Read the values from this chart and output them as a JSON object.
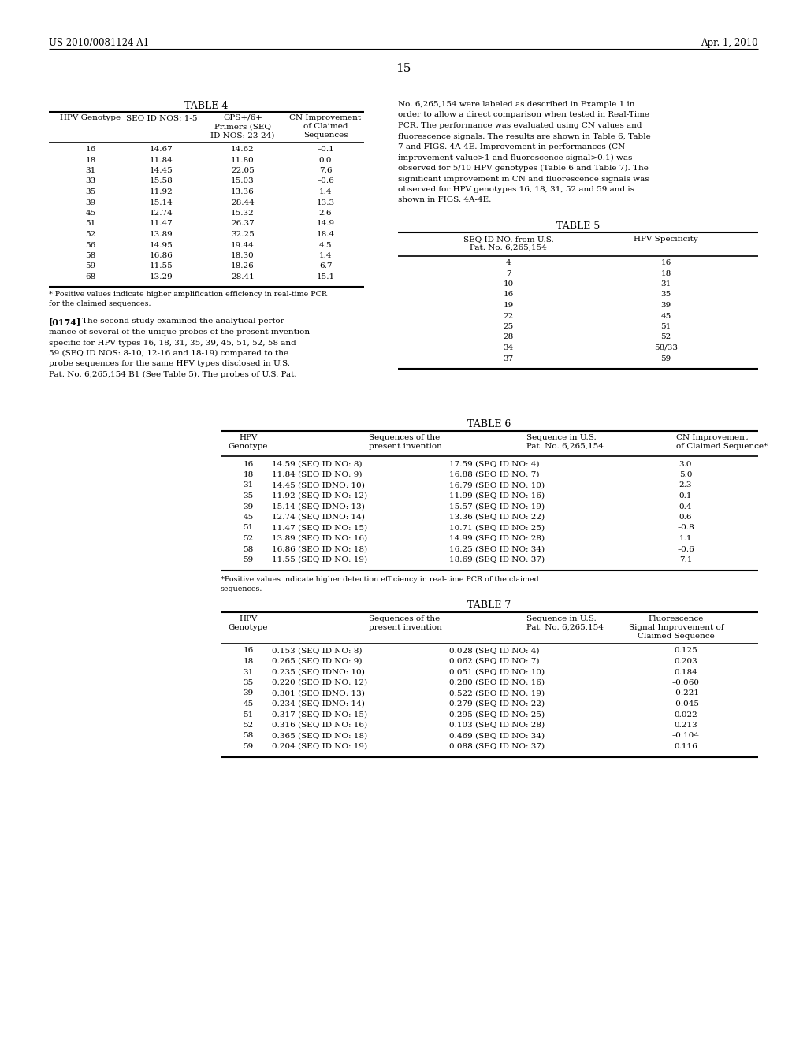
{
  "header_left": "US 2010/0081124 A1",
  "header_right": "Apr. 1, 2010",
  "page_number": "15",
  "background_color": "#ffffff",
  "text_color": "#000000",
  "table4": {
    "title": "TABLE 4",
    "col_headers": [
      [
        "HPV Genotype",
        "SEQ ID NOS: 1-5",
        "GPS+/6+\nPrimers (SEQ\nID NOS: 23-24)",
        "CN Improvement\nof Claimed\nSequences"
      ]
    ],
    "rows": [
      [
        "16",
        "14.67",
        "14.62",
        "–0.1"
      ],
      [
        "18",
        "11.84",
        "11.80",
        "0.0"
      ],
      [
        "31",
        "14.45",
        "22.05",
        "7.6"
      ],
      [
        "33",
        "15.58",
        "15.03",
        "–0.6"
      ],
      [
        "35",
        "11.92",
        "13.36",
        "1.4"
      ],
      [
        "39",
        "15.14",
        "28.44",
        "13.3"
      ],
      [
        "45",
        "12.74",
        "15.32",
        "2.6"
      ],
      [
        "51",
        "11.47",
        "26.37",
        "14.9"
      ],
      [
        "52",
        "13.89",
        "32.25",
        "18.4"
      ],
      [
        "56",
        "14.95",
        "19.44",
        "4.5"
      ],
      [
        "58",
        "16.86",
        "18.30",
        "1.4"
      ],
      [
        "59",
        "11.55",
        "18.26",
        "6.7"
      ],
      [
        "68",
        "13.29",
        "28.41",
        "15.1"
      ]
    ],
    "footnote": "* Positive values indicate higher amplification efficiency in real-time PCR\nfor the claimed sequences."
  },
  "para_label": "[0174]",
  "para_text": "The second study examined the analytical perfor-\nmance of several of the unique probes of the present invention\nspecific for HPV types 16, 18, 31, 35, 39, 45, 51, 52, 58 and\n59 (SEQ ID NOS: 8-10, 12-16 and 18-19) compared to the\nprobe sequences for the same HPV types disclosed in U.S.\nPat. No. 6,265,154 B1 (See Table 5). The probes of U.S. Pat.",
  "right_body": "No. 6,265,154 were labeled as described in Example 1 in\norder to allow a direct comparison when tested in Real-Time\nPCR. The performance was evaluated using CN values and\nfluorescence signals. The results are shown in Table 6, Table\n7 and FIGS. 4A-4E. Improvement in performances (CN\nimprovement value>1 and fluorescence signal>0.1) was\nobserved for 5/10 HPV genotypes (Table 6 and Table 7). The\nsignificant improvement in CN and fluorescence signals was\nobserved for HPV genotypes 16, 18, 31, 52 and 59 and is\nshown in FIGS. 4A-4E.",
  "table5": {
    "title": "TABLE 5",
    "col1_header": "SEQ ID NO. from U.S.\nPat. No. 6,265,154",
    "col2_header": "HPV Specificity",
    "rows": [
      [
        "4",
        "16"
      ],
      [
        "7",
        "18"
      ],
      [
        "10",
        "31"
      ],
      [
        "16",
        "35"
      ],
      [
        "19",
        "39"
      ],
      [
        "22",
        "45"
      ],
      [
        "25",
        "51"
      ],
      [
        "28",
        "52"
      ],
      [
        "34",
        "58/33"
      ],
      [
        "37",
        "59"
      ]
    ]
  },
  "table6": {
    "title": "TABLE 6",
    "col_headers": [
      "HPV\nGenotype",
      "Sequences of the\npresent invention",
      "Sequence in U.S.\nPat. No. 6,265,154",
      "CN Improvement\nof Claimed Sequence*"
    ],
    "rows": [
      [
        "16",
        "14.59 (SEQ ID NO: 8)",
        "17.59 (SEQ ID NO: 4)",
        "3.0"
      ],
      [
        "18",
        "11.84 (SEQ ID NO: 9)",
        "16.88 (SEQ ID NO: 7)",
        "5.0"
      ],
      [
        "31",
        "14.45 (SEQ IDNO: 10)",
        "16.79 (SEQ ID NO: 10)",
        "2.3"
      ],
      [
        "35",
        "11.92 (SEQ ID NO: 12)",
        "11.99 (SEQ ID NO: 16)",
        "0.1"
      ],
      [
        "39",
        "15.14 (SEQ IDNO: 13)",
        "15.57 (SEQ ID NO: 19)",
        "0.4"
      ],
      [
        "45",
        "12.74 (SEQ IDNO: 14)",
        "13.36 (SEQ ID NO: 22)",
        "0.6"
      ],
      [
        "51",
        "11.47 (SEQ ID NO: 15)",
        "10.71 (SEQ ID NO: 25)",
        "–0.8"
      ],
      [
        "52",
        "13.89 (SEQ ID NO: 16)",
        "14.99 (SEQ ID NO: 28)",
        "1.1"
      ],
      [
        "58",
        "16.86 (SEQ ID NO: 18)",
        "16.25 (SEQ ID NO: 34)",
        "–0.6"
      ],
      [
        "59",
        "11.55 (SEQ ID NO: 19)",
        "18.69 (SEQ ID NO: 37)",
        "7.1"
      ]
    ],
    "footnote": "*Positive values indicate higher detection efficiency in real-time PCR of the claimed\nsequences."
  },
  "table7": {
    "title": "TABLE 7",
    "col_headers": [
      "HPV\nGenotype",
      "Sequences of the\npresent invention",
      "Sequence in U.S.\nPat. No. 6,265,154",
      "Fluorescence\nSignal Improvement of\nClaimed Sequence"
    ],
    "rows": [
      [
        "16",
        "0.153 (SEQ ID NO: 8)",
        "0.028 (SEQ ID NO: 4)",
        "0.125"
      ],
      [
        "18",
        "0.265 (SEQ ID NO: 9)",
        "0.062 (SEQ ID NO: 7)",
        "0.203"
      ],
      [
        "31",
        "0.235 (SEQ IDNO: 10)",
        "0.051 (SEQ ID NO: 10)",
        "0.184"
      ],
      [
        "35",
        "0.220 (SEQ ID NO: 12)",
        "0.280 (SEQ ID NO: 16)",
        "–0.060"
      ],
      [
        "39",
        "0.301 (SEQ IDNO: 13)",
        "0.522 (SEQ ID NO: 19)",
        "–0.221"
      ],
      [
        "45",
        "0.234 (SEQ IDNO: 14)",
        "0.279 (SEQ ID NO: 22)",
        "–0.045"
      ],
      [
        "51",
        "0.317 (SEQ ID NO: 15)",
        "0.295 (SEQ ID NO: 25)",
        "0.022"
      ],
      [
        "52",
        "0.316 (SEQ ID NO: 16)",
        "0.103 (SEQ ID NO: 28)",
        "0.213"
      ],
      [
        "58",
        "0.365 (SEQ ID NO: 18)",
        "0.469 (SEQ ID NO: 34)",
        "–0.104"
      ],
      [
        "59",
        "0.204 (SEQ ID NO: 19)",
        "0.088 (SEQ ID NO: 37)",
        "0.116"
      ]
    ]
  }
}
